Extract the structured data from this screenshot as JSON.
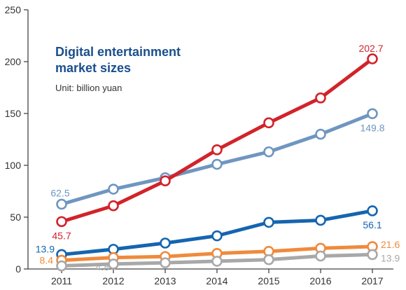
{
  "chart_data": {
    "type": "line",
    "title": "Digital entertainment market sizes",
    "subtitle": "Unit: billion yuan",
    "x": [
      "2011",
      "2012",
      "2013",
      "2014",
      "2015",
      "2016",
      "2017"
    ],
    "ylim": [
      0,
      250
    ],
    "yticks": [
      "0",
      "50",
      "100",
      "150",
      "200",
      "250"
    ],
    "grid": false,
    "legend": "none",
    "series": [
      {
        "color": "#6f96bf",
        "values": [
          62.5,
          77,
          88,
          101,
          113,
          130,
          149.8
        ],
        "labels": [
          {
            "index": 0,
            "text": "62.5"
          },
          {
            "index": 6,
            "text": "149.8"
          }
        ]
      },
      {
        "color": "#d2232a",
        "values": [
          45.7,
          61,
          85,
          115,
          141,
          165,
          202.7
        ],
        "labels": [
          {
            "index": 0,
            "text": "45.7"
          },
          {
            "index": 6,
            "text": "202.7"
          }
        ]
      },
      {
        "color": "#1565b0",
        "values": [
          13.9,
          19,
          25,
          32,
          45,
          47,
          56.1
        ],
        "labels": [
          {
            "index": 0,
            "text": "13.9"
          },
          {
            "index": 6,
            "text": "56.1"
          }
        ]
      },
      {
        "color": "#f08a3c",
        "values": [
          8.4,
          11,
          12,
          15,
          17,
          20,
          21.6
        ],
        "labels": [
          {
            "index": 0,
            "text": "8.4"
          },
          {
            "index": 6,
            "text": "21.6"
          }
        ]
      },
      {
        "color": "#a8a8a8",
        "values": [
          3,
          4.8,
          6,
          7.5,
          9,
          12.5,
          13.9
        ],
        "labels": [
          {
            "index": 1,
            "text": "4.8"
          },
          {
            "index": 6,
            "text": "13.9"
          }
        ]
      }
    ]
  }
}
